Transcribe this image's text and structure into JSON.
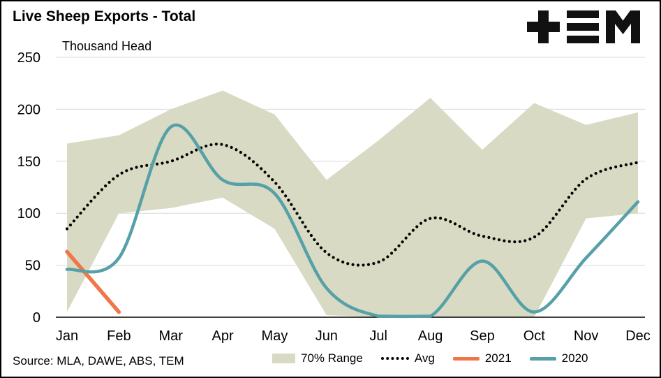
{
  "header": {
    "title": "Live Sheep Exports - Total",
    "units_label": "Thousand Head",
    "logo_name": "TEM"
  },
  "footer": {
    "source": "Source: MLA, DAWE, ABS, TEM"
  },
  "colors": {
    "band": "#d8dac3",
    "avg": "#000000",
    "series_2021": "#f0764a",
    "series_2020": "#56a0a8",
    "gridline": "#d9d9d9",
    "axis": "#000000"
  },
  "chart_data": {
    "type": "line",
    "title": "Live Sheep Exports - Total",
    "xlabel": "",
    "ylabel": "Thousand Head",
    "ylim": [
      0,
      250
    ],
    "yticks": [
      0,
      50,
      100,
      150,
      200,
      250
    ],
    "grid": true,
    "legend_position": "bottom",
    "categories": [
      "Jan",
      "Feb",
      "Mar",
      "Apr",
      "May",
      "Jun",
      "Jul",
      "Aug",
      "Sep",
      "Oct",
      "Nov",
      "Dec"
    ],
    "series": [
      {
        "name": "70% Range",
        "type": "band",
        "color": "#d8dac3",
        "upper": [
          167,
          175,
          200,
          218,
          195,
          132,
          170,
          211,
          161,
          206,
          185,
          197
        ],
        "lower": [
          5,
          100,
          105,
          115,
          85,
          2,
          0,
          0,
          0,
          0,
          95,
          100
        ]
      },
      {
        "name": "Avg",
        "type": "dotted-line",
        "color": "#000000",
        "values": [
          85,
          137,
          150,
          166,
          130,
          62,
          53,
          95,
          78,
          77,
          133,
          149
        ]
      },
      {
        "name": "2021",
        "type": "line",
        "color": "#f0764a",
        "values": [
          63,
          5,
          null,
          null,
          null,
          null,
          null,
          null,
          null,
          null,
          null,
          null
        ]
      },
      {
        "name": "2020",
        "type": "line",
        "color": "#56a0a8",
        "values": [
          46,
          57,
          183,
          132,
          119,
          28,
          1,
          1,
          54,
          5,
          57,
          111
        ]
      }
    ]
  },
  "legend": {
    "items": [
      {
        "label": "70% Range",
        "swatch": "area",
        "color": "#d8dac3"
      },
      {
        "label": "Avg",
        "swatch": "dotted",
        "color": "#000000"
      },
      {
        "label": "2021",
        "swatch": "line",
        "color": "#f0764a"
      },
      {
        "label": "2020",
        "swatch": "line",
        "color": "#56a0a8"
      }
    ]
  }
}
